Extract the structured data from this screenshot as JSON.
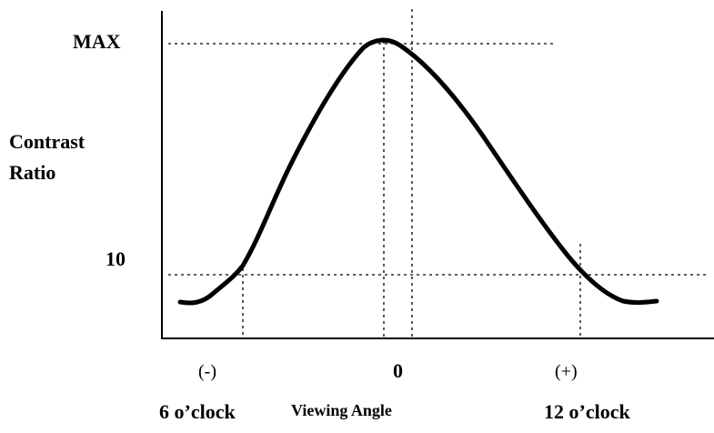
{
  "y_axis": {
    "max_label": "MAX",
    "title_line1": "Contrast",
    "title_line2": "Ratio",
    "threshold_label": "10"
  },
  "x_axis": {
    "minus_label": "(-)",
    "zero_label": "0",
    "plus_label": "(+)",
    "left_label": "6 o’clock",
    "title": "Viewing Angle",
    "right_label": "12 o’clock"
  }
}
